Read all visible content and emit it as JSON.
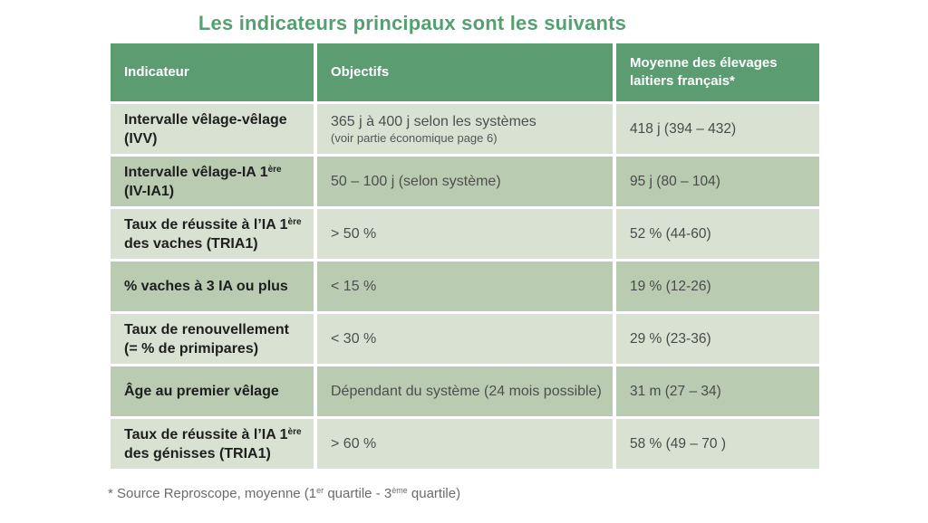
{
  "title": "Les indicateurs principaux sont les suivants",
  "colors": {
    "title_color": "#54a071",
    "header_bg": "#5b9c71",
    "row_light": "#d8e1d2",
    "row_dark": "#b9ccb2"
  },
  "table": {
    "columns": [
      "Indicateur",
      "Objectifs",
      "Moyenne des élevages laitiers français*"
    ],
    "rows": [
      {
        "indicator_segments": [
          {
            "t": "Intervalle vêlage-vêlage"
          }
        ],
        "indicator_line2": "(IVV)",
        "objective": "365 j à 400 j selon les systèmes",
        "objective_note": "(voir partie économique page 6)",
        "average": "418 j (394 – 432)"
      },
      {
        "indicator_segments": [
          {
            "t": "Intervalle vêlage-IA 1"
          },
          {
            "t": "ère",
            "sup": true
          }
        ],
        "indicator_line2": "(IV-IA1)",
        "objective": "50 – 100 j (selon système)",
        "average": "95 j (80 – 104)"
      },
      {
        "indicator_segments": [
          {
            "t": "Taux de réussite à l’IA 1"
          },
          {
            "t": "ère",
            "sup": true
          }
        ],
        "indicator_line2": "des vaches (TRIA1)",
        "objective": "> 50 %",
        "average": "52 % (44-60)"
      },
      {
        "indicator_segments": [
          {
            "t": "% vaches à 3 IA ou plus"
          }
        ],
        "indicator_line2": "",
        "objective": "< 15 %",
        "average": "19 % (12-26)"
      },
      {
        "indicator_segments": [
          {
            "t": "Taux de renouvellement"
          }
        ],
        "indicator_line2": "(= % de primipares)",
        "objective": "< 30 %",
        "average": "29 % (23-36)"
      },
      {
        "indicator_segments": [
          {
            "t": "Âge au premier vêlage"
          }
        ],
        "indicator_line2": "",
        "objective": "Dépendant du système (24 mois possible)",
        "average": "31 m (27 – 34)"
      },
      {
        "indicator_segments": [
          {
            "t": "Taux de réussite à l’IA 1"
          },
          {
            "t": "ère",
            "sup": true
          }
        ],
        "indicator_line2": "des génisses (TRIA1)",
        "objective": "> 60 %",
        "average": "58 % (49 – 70 )"
      }
    ]
  },
  "footnote_segments": [
    {
      "t": "* Source Reproscope, moyenne (1"
    },
    {
      "t": "er",
      "sup": true
    },
    {
      "t": " quartile - 3"
    },
    {
      "t": "ème",
      "sup": true
    },
    {
      "t": " quartile)"
    }
  ]
}
